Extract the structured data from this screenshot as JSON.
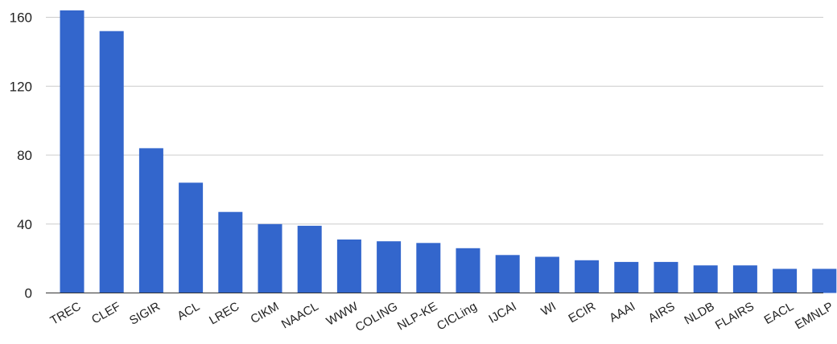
{
  "chart_data": {
    "type": "bar",
    "title": "",
    "xlabel": "",
    "ylabel": "",
    "categories": [
      "TREC",
      "CLEF",
      "SIGIR",
      "ACL",
      "LREC",
      "CIKM",
      "NAACL",
      "WWW",
      "COLING",
      "NLP-KE",
      "CICLing",
      "IJCAI",
      "WI",
      "ECIR",
      "AAAI",
      "AIRS",
      "NLDB",
      "FLAIRS",
      "EACL",
      "EMNLP"
    ],
    "series": [
      {
        "values": [
          164,
          152,
          84,
          64,
          47,
          40,
          39,
          31,
          30,
          29,
          26,
          22,
          21,
          19,
          18,
          18,
          16,
          16,
          14,
          14
        ],
        "color": "#3366cc"
      }
    ],
    "ylim": [
      0,
      164
    ],
    "yticks": [
      "0",
      "40",
      "80",
      "120",
      "160"
    ],
    "grid": true,
    "legend": "none"
  }
}
